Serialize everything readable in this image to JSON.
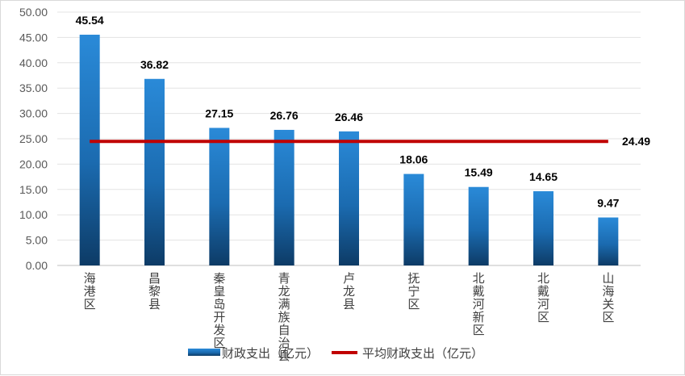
{
  "chart_data": {
    "type": "bar",
    "categories": [
      "海港区",
      "昌黎县",
      "秦皇岛开发区",
      "青龙满族自治县",
      "卢龙县",
      "抚宁区",
      "北戴河新区",
      "北戴河区",
      "山海关区"
    ],
    "series": [
      {
        "name": "财政支出（亿元）",
        "type": "bar",
        "values": [
          45.54,
          36.82,
          27.15,
          26.76,
          26.46,
          18.06,
          15.49,
          14.65,
          9.47
        ],
        "color_top": "#2a8ad8",
        "color_bottom": "#0d3b66"
      },
      {
        "name": "平均财政支出（亿元）",
        "type": "line",
        "value": 24.49,
        "label": "24.49",
        "color": "#c00000"
      }
    ],
    "data_labels": [
      "45.54",
      "36.82",
      "27.15",
      "26.76",
      "26.46",
      "18.06",
      "15.49",
      "14.65",
      "9.47"
    ],
    "yticks": [
      "0.00",
      "5.00",
      "10.00",
      "15.00",
      "20.00",
      "25.00",
      "30.00",
      "35.00",
      "40.00",
      "45.00",
      "50.00"
    ],
    "ylim": [
      0,
      50
    ],
    "grid": true,
    "legend_position": "bottom",
    "title": "",
    "xlabel": "",
    "ylabel": ""
  }
}
